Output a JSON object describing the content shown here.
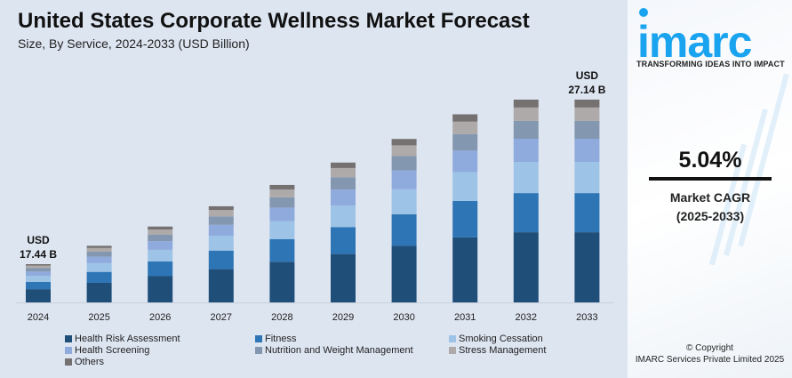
{
  "chart_data": {
    "type": "bar",
    "stacked": true,
    "title": "United States Corporate Wellness Market Forecast",
    "subtitle": "Size, By Service, 2024-2033 (USD Billion)",
    "categories": [
      "2024",
      "2025",
      "2026",
      "2027",
      "2028",
      "2029",
      "2030",
      "2031",
      "2032",
      "2033"
    ],
    "totals": [
      17.44,
      18.32,
      19.24,
      20.21,
      21.23,
      22.3,
      23.43,
      24.61,
      25.85,
      27.14
    ],
    "series": [
      {
        "name": "Health Risk Assessment",
        "color": "#1f4e79",
        "share": 0.346
      },
      {
        "name": "Fitness",
        "color": "#2e75b6",
        "share": 0.193
      },
      {
        "name": "Smoking Cessation",
        "color": "#9dc3e6",
        "share": 0.154
      },
      {
        "name": "Health Screening",
        "color": "#8faadc",
        "share": 0.114
      },
      {
        "name": "Nutrition and Weight Management",
        "color": "#8497b0",
        "share": 0.088
      },
      {
        "name": "Stress Management",
        "color": "#aeaaaa",
        "share": 0.066
      },
      {
        "name": "Others",
        "color": "#767171",
        "share": 0.039
      }
    ],
    "annotations": [
      {
        "category": "2024",
        "line1": "USD",
        "line2": "17.44 B"
      },
      {
        "category": "2033",
        "line1": "USD",
        "line2": "27.14 B"
      }
    ],
    "xlabel": "",
    "ylabel": "",
    "grid": false,
    "legend_position": "bottom"
  },
  "side": {
    "logo": "imarc",
    "tagline": "TRANSFORMING IDEAS INTO IMPACT",
    "cagr_value": "5.04%",
    "cagr_label": "Market CAGR",
    "cagr_period": "(2025-2033)",
    "copyright": "© Copyright",
    "company": "IMARC Services Private Limited 2025"
  }
}
